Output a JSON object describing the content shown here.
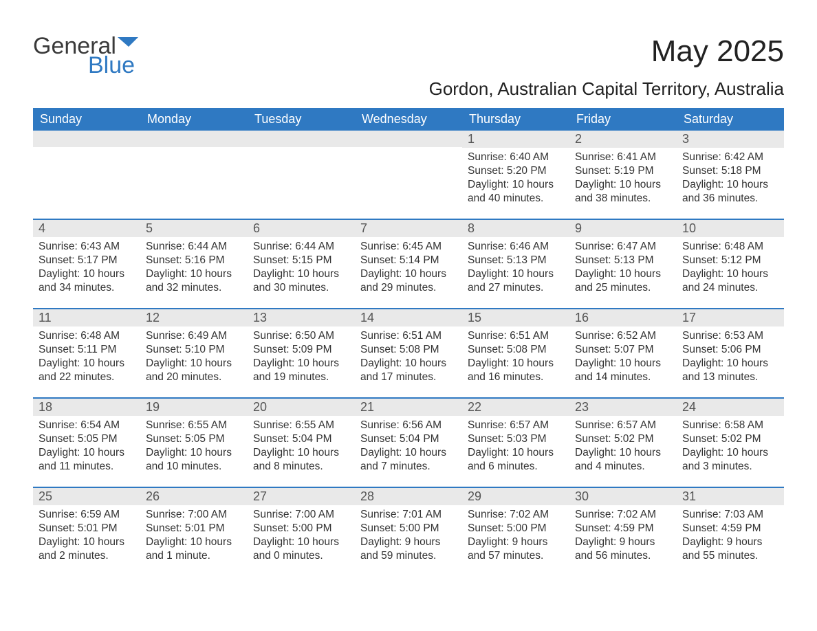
{
  "logo": {
    "line1": "General",
    "line2": "Blue",
    "accent_color": "#2f79c2"
  },
  "title": "May 2025",
  "location": "Gordon, Australian Capital Territory, Australia",
  "day_headers": [
    "Sunday",
    "Monday",
    "Tuesday",
    "Wednesday",
    "Thursday",
    "Friday",
    "Saturday"
  ],
  "labels": {
    "sunrise": "Sunrise:",
    "sunset": "Sunset:",
    "daylight": "Daylight:"
  },
  "colors": {
    "header_bg": "#2f79c2",
    "header_text": "#ffffff",
    "daynum_bg": "#e9e9e9",
    "text": "#333333",
    "week_border": "#2f79c2"
  },
  "weeks": [
    [
      {
        "empty": true
      },
      {
        "empty": true
      },
      {
        "empty": true
      },
      {
        "empty": true
      },
      {
        "day": "1",
        "sunrise": "6:40 AM",
        "sunset": "5:20 PM",
        "daylight": "10 hours and 40 minutes."
      },
      {
        "day": "2",
        "sunrise": "6:41 AM",
        "sunset": "5:19 PM",
        "daylight": "10 hours and 38 minutes."
      },
      {
        "day": "3",
        "sunrise": "6:42 AM",
        "sunset": "5:18 PM",
        "daylight": "10 hours and 36 minutes."
      }
    ],
    [
      {
        "day": "4",
        "sunrise": "6:43 AM",
        "sunset": "5:17 PM",
        "daylight": "10 hours and 34 minutes."
      },
      {
        "day": "5",
        "sunrise": "6:44 AM",
        "sunset": "5:16 PM",
        "daylight": "10 hours and 32 minutes."
      },
      {
        "day": "6",
        "sunrise": "6:44 AM",
        "sunset": "5:15 PM",
        "daylight": "10 hours and 30 minutes."
      },
      {
        "day": "7",
        "sunrise": "6:45 AM",
        "sunset": "5:14 PM",
        "daylight": "10 hours and 29 minutes."
      },
      {
        "day": "8",
        "sunrise": "6:46 AM",
        "sunset": "5:13 PM",
        "daylight": "10 hours and 27 minutes."
      },
      {
        "day": "9",
        "sunrise": "6:47 AM",
        "sunset": "5:13 PM",
        "daylight": "10 hours and 25 minutes."
      },
      {
        "day": "10",
        "sunrise": "6:48 AM",
        "sunset": "5:12 PM",
        "daylight": "10 hours and 24 minutes."
      }
    ],
    [
      {
        "day": "11",
        "sunrise": "6:48 AM",
        "sunset": "5:11 PM",
        "daylight": "10 hours and 22 minutes."
      },
      {
        "day": "12",
        "sunrise": "6:49 AM",
        "sunset": "5:10 PM",
        "daylight": "10 hours and 20 minutes."
      },
      {
        "day": "13",
        "sunrise": "6:50 AM",
        "sunset": "5:09 PM",
        "daylight": "10 hours and 19 minutes."
      },
      {
        "day": "14",
        "sunrise": "6:51 AM",
        "sunset": "5:08 PM",
        "daylight": "10 hours and 17 minutes."
      },
      {
        "day": "15",
        "sunrise": "6:51 AM",
        "sunset": "5:08 PM",
        "daylight": "10 hours and 16 minutes."
      },
      {
        "day": "16",
        "sunrise": "6:52 AM",
        "sunset": "5:07 PM",
        "daylight": "10 hours and 14 minutes."
      },
      {
        "day": "17",
        "sunrise": "6:53 AM",
        "sunset": "5:06 PM",
        "daylight": "10 hours and 13 minutes."
      }
    ],
    [
      {
        "day": "18",
        "sunrise": "6:54 AM",
        "sunset": "5:05 PM",
        "daylight": "10 hours and 11 minutes."
      },
      {
        "day": "19",
        "sunrise": "6:55 AM",
        "sunset": "5:05 PM",
        "daylight": "10 hours and 10 minutes."
      },
      {
        "day": "20",
        "sunrise": "6:55 AM",
        "sunset": "5:04 PM",
        "daylight": "10 hours and 8 minutes."
      },
      {
        "day": "21",
        "sunrise": "6:56 AM",
        "sunset": "5:04 PM",
        "daylight": "10 hours and 7 minutes."
      },
      {
        "day": "22",
        "sunrise": "6:57 AM",
        "sunset": "5:03 PM",
        "daylight": "10 hours and 6 minutes."
      },
      {
        "day": "23",
        "sunrise": "6:57 AM",
        "sunset": "5:02 PM",
        "daylight": "10 hours and 4 minutes."
      },
      {
        "day": "24",
        "sunrise": "6:58 AM",
        "sunset": "5:02 PM",
        "daylight": "10 hours and 3 minutes."
      }
    ],
    [
      {
        "day": "25",
        "sunrise": "6:59 AM",
        "sunset": "5:01 PM",
        "daylight": "10 hours and 2 minutes."
      },
      {
        "day": "26",
        "sunrise": "7:00 AM",
        "sunset": "5:01 PM",
        "daylight": "10 hours and 1 minute."
      },
      {
        "day": "27",
        "sunrise": "7:00 AM",
        "sunset": "5:00 PM",
        "daylight": "10 hours and 0 minutes."
      },
      {
        "day": "28",
        "sunrise": "7:01 AM",
        "sunset": "5:00 PM",
        "daylight": "9 hours and 59 minutes."
      },
      {
        "day": "29",
        "sunrise": "7:02 AM",
        "sunset": "5:00 PM",
        "daylight": "9 hours and 57 minutes."
      },
      {
        "day": "30",
        "sunrise": "7:02 AM",
        "sunset": "4:59 PM",
        "daylight": "9 hours and 56 minutes."
      },
      {
        "day": "31",
        "sunrise": "7:03 AM",
        "sunset": "4:59 PM",
        "daylight": "9 hours and 55 minutes."
      }
    ]
  ]
}
